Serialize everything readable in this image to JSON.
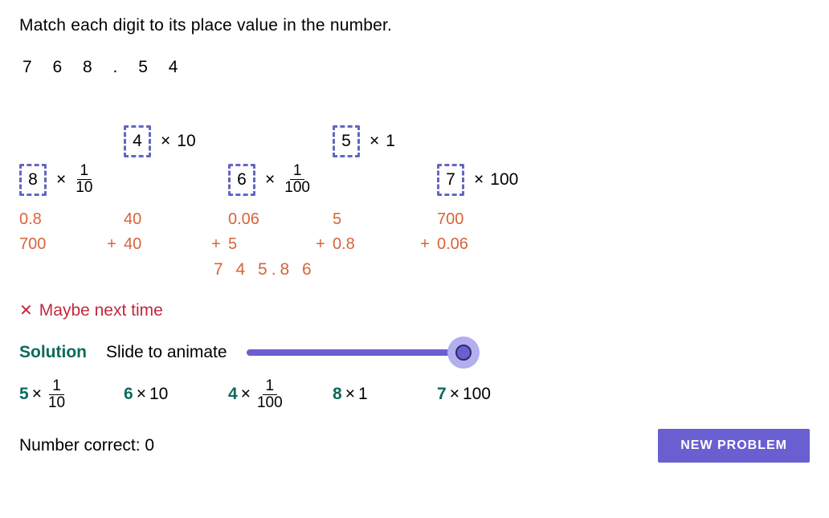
{
  "instruction": "Match each digit to its place value in the number.",
  "number_display": "7 6 8 . 5 4",
  "colors": {
    "accent": "#6a5fd0",
    "accent_light": "#b3aef0",
    "orange": "#d8633a",
    "teal": "#0a6b5e",
    "error": "#c02a3e"
  },
  "cards": [
    {
      "digit": "8",
      "mult_type": "frac",
      "mult_num": "1",
      "mult_den": "10",
      "offset": false
    },
    {
      "digit": "4",
      "mult_type": "int",
      "mult_val": "10",
      "offset": true
    },
    {
      "digit": "6",
      "mult_type": "frac",
      "mult_num": "1",
      "mult_den": "100",
      "offset": false
    },
    {
      "digit": "5",
      "mult_type": "int",
      "mult_val": "1",
      "offset": true
    },
    {
      "digit": "7",
      "mult_type": "int",
      "mult_val": "100",
      "offset": false
    }
  ],
  "evaluations": [
    "0.8",
    "40",
    "0.06",
    "5",
    "700"
  ],
  "sum_terms": [
    "700",
    "40",
    "5",
    "0.8",
    "0.06"
  ],
  "total": "7 4 5.8 6",
  "feedback_text": "Maybe next time",
  "solution_label": "Solution",
  "slide_label": "Slide to animate",
  "slider": {
    "value": 100,
    "track_width": 270
  },
  "solutions": [
    {
      "lead": "5",
      "type": "frac",
      "num": "1",
      "den": "10"
    },
    {
      "lead": "6",
      "type": "int",
      "val": "10"
    },
    {
      "lead": "4",
      "type": "frac",
      "num": "1",
      "den": "100"
    },
    {
      "lead": "8",
      "type": "int",
      "val": "1"
    },
    {
      "lead": "7",
      "type": "int",
      "val": "100"
    }
  ],
  "score_label": "Number correct: ",
  "score_value": "0",
  "new_problem_label": "NEW PROBLEM"
}
